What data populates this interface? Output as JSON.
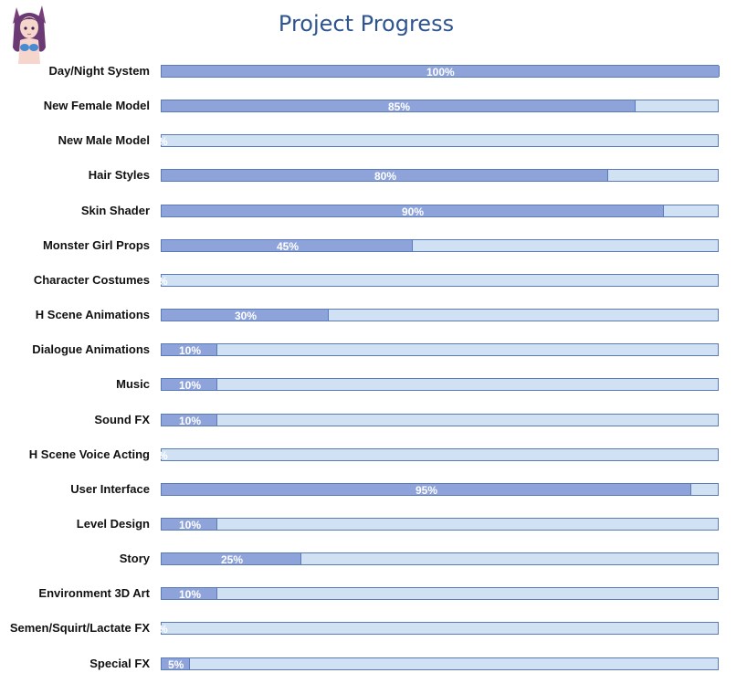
{
  "chart_data": {
    "type": "bar",
    "orientation": "horizontal",
    "title": "Project Progress",
    "xlim": [
      0,
      100
    ],
    "grid": false,
    "legend": "none",
    "colors": {
      "fill": "#8ea3da",
      "track": "#cfe1f3",
      "border": "#5a7ab8",
      "label": "#ffffff",
      "title": "#2f5590"
    },
    "categories": [
      "Day/Night System",
      "New Female Model",
      "New Male Model",
      "Hair Styles",
      "Skin Shader",
      "Monster Girl Props",
      "Character Costumes",
      "H Scene Animations",
      "Dialogue Animations",
      "Music",
      "Sound FX",
      "H Scene Voice Acting",
      "User Interface",
      "Level Design",
      "Story",
      "Environment 3D Art",
      "Semen/Squirt/Lactate FX",
      "Special FX"
    ],
    "values": [
      100,
      85,
      0,
      80,
      90,
      45,
      0,
      30,
      10,
      10,
      10,
      0,
      95,
      10,
      25,
      10,
      0,
      5
    ],
    "value_labels": [
      "100%",
      "85%",
      "%",
      "80%",
      "90%",
      "45%",
      "%",
      "30%",
      "10%",
      "10%",
      "10%",
      "%",
      "95%",
      "10%",
      "25%",
      "10%",
      "%",
      "5%"
    ]
  },
  "avatar": {
    "icon": "anime-character-avatar-icon"
  }
}
